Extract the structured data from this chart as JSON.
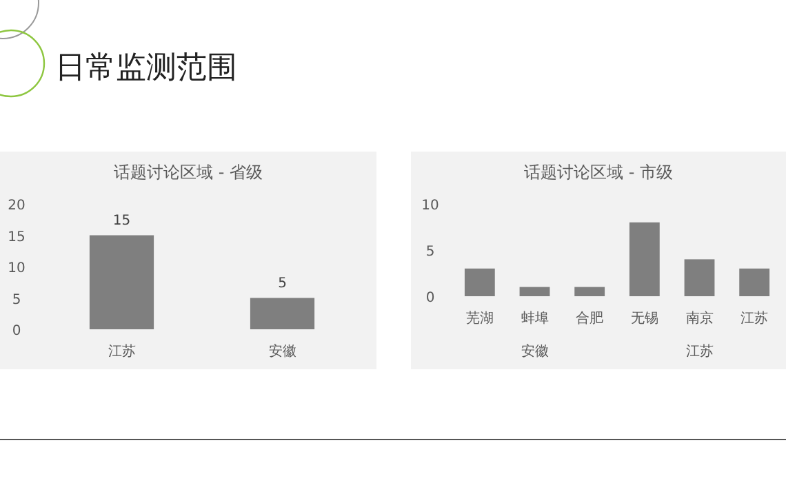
{
  "chart_data": [
    {
      "type": "bar",
      "title": "话题讨论区域 - 省级",
      "categories": [
        "江苏",
        "安徽"
      ],
      "values": [
        15,
        5
      ],
      "color": "#7f7f7f",
      "ylim": [
        0,
        20
      ],
      "yticks": [
        0,
        5,
        10,
        15,
        20
      ],
      "data_labels": true,
      "annotations": [
        "日常监测范围"
      ]
    },
    {
      "type": "bar",
      "title": "话题讨论区域 - 市级",
      "categories": [
        "芜湖",
        "蚌埠",
        "合肥",
        "无锡",
        "南京",
        "江苏"
      ],
      "values": [
        3,
        1,
        1,
        8,
        4,
        3
      ],
      "color": "#7f7f7f",
      "ylim": [
        0,
        10
      ],
      "yticks": [
        0,
        5,
        10
      ],
      "annotations": [
        "安徽",
        "江苏"
      ]
    }
  ]
}
